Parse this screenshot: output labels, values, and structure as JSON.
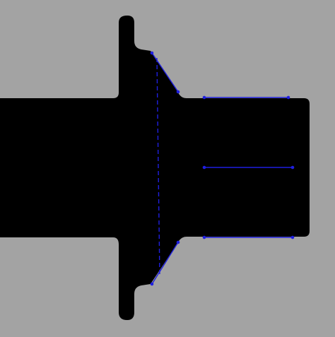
{
  "view": {
    "background_color": "#a3a3a3",
    "part_fill_color": "#000000",
    "measurement_line_color": "#1f1fe0"
  },
  "part": {
    "kind": "turned-part-silhouette",
    "features": [
      "left-shaft",
      "flange",
      "conical-taper",
      "right-stub"
    ]
  },
  "overlays": {
    "measurement_lines": [
      "taper-edge-top",
      "taper-edge-bottom",
      "taper-base-dashed",
      "stub-top-edge",
      "stub-centerline",
      "stub-bottom-edge"
    ]
  }
}
